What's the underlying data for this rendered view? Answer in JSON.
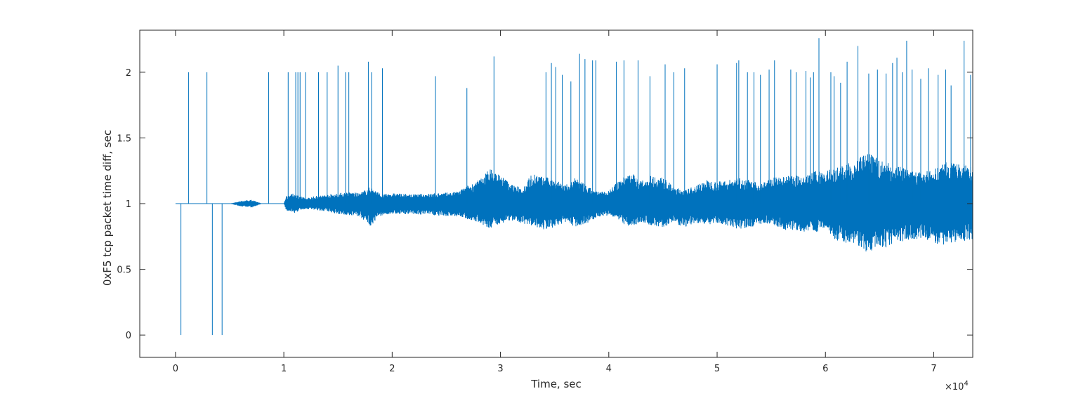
{
  "chart_data": {
    "type": "line",
    "title": "",
    "xlabel": "Time, sec",
    "ylabel": "0xF5 tcp packet time diff, sec",
    "x_exponent_base": "×10",
    "x_exponent_power": "4",
    "xlim": [
      -0.33,
      7.36
    ],
    "ylim": [
      -0.17,
      2.32
    ],
    "x_ticks": [
      0,
      1,
      2,
      3,
      4,
      5,
      6,
      7
    ],
    "x_tick_labels": [
      "0",
      "1",
      "2",
      "3",
      "4",
      "5",
      "6",
      "7"
    ],
    "y_ticks": [
      0,
      0.5,
      1,
      1.5,
      2
    ],
    "y_tick_labels": [
      "0",
      "0.5",
      "1",
      "1.5",
      "2"
    ],
    "grid": false,
    "series": [
      {
        "color": "#0072bd",
        "note_units": "x in units of 1e4 sec",
        "envelope": [
          [
            0.0,
            1.0,
            1.0
          ],
          [
            0.5,
            1.0,
            1.0
          ],
          [
            0.6,
            0.98,
            1.02
          ],
          [
            0.7,
            0.97,
            1.03
          ],
          [
            0.8,
            1.0,
            1.0
          ],
          [
            1.0,
            1.0,
            1.0
          ],
          [
            1.02,
            0.95,
            1.06
          ],
          [
            1.1,
            0.93,
            1.08
          ],
          [
            1.2,
            0.96,
            1.04
          ],
          [
            1.3,
            0.95,
            1.06
          ],
          [
            1.4,
            0.94,
            1.07
          ],
          [
            1.5,
            0.92,
            1.08
          ],
          [
            1.6,
            0.91,
            1.09
          ],
          [
            1.7,
            0.9,
            1.08
          ],
          [
            1.8,
            0.83,
            1.13
          ],
          [
            1.9,
            0.91,
            1.07
          ],
          [
            2.0,
            0.92,
            1.08
          ],
          [
            2.2,
            0.92,
            1.07
          ],
          [
            2.4,
            0.91,
            1.08
          ],
          [
            2.6,
            0.9,
            1.09
          ],
          [
            2.7,
            0.88,
            1.14
          ],
          [
            2.8,
            0.86,
            1.18
          ],
          [
            2.9,
            0.8,
            1.27
          ],
          [
            3.0,
            0.85,
            1.22
          ],
          [
            3.1,
            0.87,
            1.15
          ],
          [
            3.2,
            0.85,
            1.12
          ],
          [
            3.3,
            0.83,
            1.24
          ],
          [
            3.4,
            0.8,
            1.2
          ],
          [
            3.5,
            0.82,
            1.2
          ],
          [
            3.6,
            0.86,
            1.14
          ],
          [
            3.7,
            0.82,
            1.2
          ],
          [
            3.8,
            0.85,
            1.13
          ],
          [
            3.9,
            0.9,
            1.09
          ],
          [
            4.0,
            0.91,
            1.1
          ],
          [
            4.1,
            0.86,
            1.18
          ],
          [
            4.2,
            0.82,
            1.25
          ],
          [
            4.3,
            0.86,
            1.17
          ],
          [
            4.4,
            0.83,
            1.22
          ],
          [
            4.5,
            0.82,
            1.2
          ],
          [
            4.6,
            0.85,
            1.13
          ],
          [
            4.7,
            0.82,
            1.1
          ],
          [
            4.8,
            0.85,
            1.14
          ],
          [
            4.9,
            0.84,
            1.18
          ],
          [
            5.0,
            0.85,
            1.17
          ],
          [
            5.1,
            0.83,
            1.18
          ],
          [
            5.2,
            0.8,
            1.2
          ],
          [
            5.3,
            0.82,
            1.18
          ],
          [
            5.4,
            0.84,
            1.15
          ],
          [
            5.5,
            0.85,
            1.2
          ],
          [
            5.6,
            0.8,
            1.2
          ],
          [
            5.7,
            0.8,
            1.22
          ],
          [
            5.8,
            0.78,
            1.2
          ],
          [
            5.9,
            0.78,
            1.25
          ],
          [
            6.0,
            0.8,
            1.25
          ],
          [
            6.1,
            0.72,
            1.28
          ],
          [
            6.2,
            0.7,
            1.3
          ],
          [
            6.3,
            0.68,
            1.35
          ],
          [
            6.4,
            0.62,
            1.38
          ],
          [
            6.5,
            0.65,
            1.34
          ],
          [
            6.6,
            0.68,
            1.3
          ],
          [
            6.7,
            0.7,
            1.28
          ],
          [
            6.8,
            0.72,
            1.25
          ],
          [
            6.9,
            0.74,
            1.24
          ],
          [
            7.0,
            0.7,
            1.26
          ],
          [
            7.1,
            0.68,
            1.32
          ],
          [
            7.2,
            0.7,
            1.3
          ],
          [
            7.3,
            0.72,
            1.3
          ],
          [
            7.36,
            0.73,
            1.28
          ]
        ],
        "spikes": [
          [
            0.05,
            0.0
          ],
          [
            0.12,
            2.0
          ],
          [
            0.29,
            2.0
          ],
          [
            0.34,
            0.0
          ],
          [
            0.43,
            0.0
          ],
          [
            0.86,
            2.0
          ],
          [
            1.04,
            2.0
          ],
          [
            1.11,
            2.0
          ],
          [
            1.13,
            2.0
          ],
          [
            1.15,
            2.0
          ],
          [
            1.2,
            2.0
          ],
          [
            1.32,
            2.0
          ],
          [
            1.4,
            2.0
          ],
          [
            1.5,
            2.05
          ],
          [
            1.57,
            2.0
          ],
          [
            1.6,
            2.0
          ],
          [
            1.78,
            2.08
          ],
          [
            1.81,
            2.0
          ],
          [
            1.91,
            2.03
          ],
          [
            2.4,
            1.97
          ],
          [
            2.69,
            1.88
          ],
          [
            2.94,
            2.12
          ],
          [
            3.42,
            2.0
          ],
          [
            3.47,
            2.07
          ],
          [
            3.51,
            2.04
          ],
          [
            3.57,
            1.98
          ],
          [
            3.65,
            1.93
          ],
          [
            3.73,
            2.14
          ],
          [
            3.78,
            2.1
          ],
          [
            3.85,
            2.09
          ],
          [
            3.88,
            2.09
          ],
          [
            4.07,
            2.08
          ],
          [
            4.14,
            2.09
          ],
          [
            4.27,
            2.09
          ],
          [
            4.38,
            1.97
          ],
          [
            4.52,
            2.06
          ],
          [
            4.6,
            2.0
          ],
          [
            4.7,
            2.03
          ],
          [
            5.0,
            2.06
          ],
          [
            5.18,
            2.07
          ],
          [
            5.2,
            2.09
          ],
          [
            5.28,
            2.0
          ],
          [
            5.34,
            2.0
          ],
          [
            5.4,
            1.98
          ],
          [
            5.48,
            2.02
          ],
          [
            5.53,
            2.09
          ],
          [
            5.68,
            2.02
          ],
          [
            5.73,
            2.0
          ],
          [
            5.82,
            2.01
          ],
          [
            5.86,
            1.96
          ],
          [
            5.89,
            2.0
          ],
          [
            5.94,
            2.26
          ],
          [
            6.05,
            2.0
          ],
          [
            6.08,
            1.97
          ],
          [
            6.14,
            1.92
          ],
          [
            6.2,
            2.08
          ],
          [
            6.3,
            2.2
          ],
          [
            6.4,
            1.99
          ],
          [
            6.48,
            2.02
          ],
          [
            6.56,
            1.99
          ],
          [
            6.62,
            2.07
          ],
          [
            6.66,
            2.11
          ],
          [
            6.71,
            2.0
          ],
          [
            6.75,
            2.24
          ],
          [
            6.8,
            2.02
          ],
          [
            6.88,
            1.95
          ],
          [
            6.95,
            2.03
          ],
          [
            7.04,
            1.98
          ],
          [
            7.11,
            2.02
          ],
          [
            7.16,
            1.9
          ],
          [
            7.28,
            2.24
          ],
          [
            7.34,
            1.98
          ],
          [
            7.38,
            1.96
          ]
        ]
      }
    ]
  }
}
